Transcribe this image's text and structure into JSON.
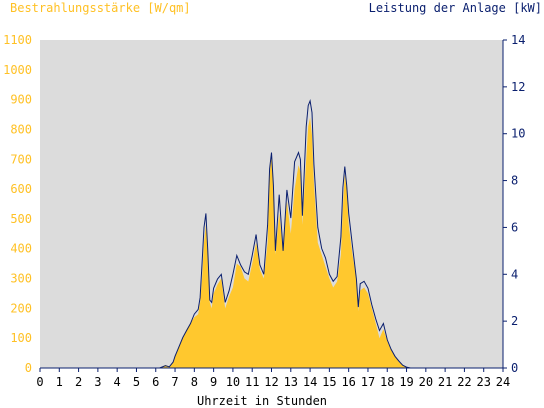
{
  "chart_data": {
    "type": "area",
    "ylabel_left": "Bestrahlungsstärke [W/qm]",
    "ylabel_right": "Leistung der Anlage [kW]",
    "xlabel": "Uhrzeit in Stunden",
    "xlim": [
      0,
      24
    ],
    "ylim_left": [
      0,
      1100
    ],
    "ylim_right": [
      0,
      14
    ],
    "x_ticks": [
      0,
      1,
      2,
      3,
      4,
      5,
      6,
      7,
      8,
      9,
      10,
      11,
      12,
      13,
      14,
      15,
      16,
      17,
      18,
      19,
      20,
      21,
      22,
      23,
      24
    ],
    "y_ticks_left": [
      0,
      100,
      200,
      300,
      400,
      500,
      600,
      700,
      800,
      900,
      1000,
      1100
    ],
    "y_ticks_right": [
      0,
      2,
      4,
      6,
      8,
      10,
      12,
      14
    ],
    "grid": false,
    "colors": {
      "plot_background": "#dcdcdc",
      "irradiance_fill": "#ffc82e",
      "power_line": "#0a1f6e",
      "left_axis_text": "#ffc125",
      "right_axis_text": "#0a1f6e"
    },
    "series": [
      {
        "axis": "left",
        "style": "filled-area",
        "x": [
          0,
          6.2,
          6.5,
          6.7,
          6.9,
          7.0,
          7.2,
          7.4,
          7.6,
          7.8,
          8.0,
          8.2,
          8.3,
          8.4,
          8.5,
          8.6,
          8.7,
          8.8,
          8.9,
          9.0,
          9.2,
          9.4,
          9.6,
          9.8,
          10.0,
          10.2,
          10.4,
          10.6,
          10.8,
          11.0,
          11.2,
          11.3,
          11.4,
          11.6,
          11.8,
          11.9,
          12.0,
          12.1,
          12.2,
          12.4,
          12.6,
          12.8,
          13.0,
          13.2,
          13.4,
          13.5,
          13.6,
          13.8,
          13.9,
          14.0,
          14.1,
          14.2,
          14.4,
          14.6,
          14.8,
          15.0,
          15.2,
          15.4,
          15.6,
          15.7,
          15.8,
          15.9,
          16.0,
          16.2,
          16.4,
          16.5,
          16.6,
          16.8,
          17.0,
          17.2,
          17.4,
          17.6,
          17.8,
          18.0,
          18.2,
          18.4,
          18.6,
          18.8,
          19.0,
          19.2,
          24
        ],
        "y": [
          0,
          0,
          10,
          5,
          20,
          40,
          70,
          100,
          130,
          150,
          170,
          180,
          220,
          300,
          420,
          480,
          380,
          220,
          200,
          250,
          280,
          300,
          200,
          240,
          270,
          350,
          340,
          300,
          290,
          350,
          420,
          380,
          330,
          300,
          420,
          650,
          710,
          620,
          380,
          520,
          390,
          560,
          450,
          600,
          680,
          660,
          480,
          700,
          810,
          840,
          780,
          620,
          420,
          380,
          340,
          300,
          270,
          290,
          380,
          540,
          650,
          600,
          480,
          380,
          300,
          190,
          260,
          270,
          250,
          200,
          150,
          100,
          130,
          90,
          60,
          40,
          20,
          10,
          3,
          0,
          0
        ]
      },
      {
        "axis": "right",
        "style": "line",
        "x": [
          0,
          6.2,
          6.5,
          6.7,
          6.9,
          7.0,
          7.2,
          7.4,
          7.6,
          7.8,
          8.0,
          8.2,
          8.3,
          8.4,
          8.5,
          8.6,
          8.7,
          8.8,
          8.9,
          9.0,
          9.2,
          9.4,
          9.6,
          9.8,
          10.0,
          10.2,
          10.4,
          10.6,
          10.8,
          11.0,
          11.2,
          11.3,
          11.4,
          11.6,
          11.8,
          11.9,
          12.0,
          12.1,
          12.2,
          12.4,
          12.6,
          12.8,
          13.0,
          13.2,
          13.4,
          13.5,
          13.6,
          13.8,
          13.9,
          14.0,
          14.1,
          14.2,
          14.4,
          14.6,
          14.8,
          15.0,
          15.2,
          15.4,
          15.6,
          15.7,
          15.8,
          15.9,
          16.0,
          16.2,
          16.4,
          16.5,
          16.6,
          16.8,
          17.0,
          17.2,
          17.4,
          17.6,
          17.8,
          18.0,
          18.2,
          18.4,
          18.6,
          18.8,
          19.0,
          19.2,
          24
        ],
        "y": [
          0,
          0,
          0.1,
          0.05,
          0.25,
          0.5,
          0.9,
          1.3,
          1.6,
          1.9,
          2.3,
          2.5,
          3.0,
          4.5,
          6.0,
          6.6,
          5.0,
          2.9,
          2.8,
          3.4,
          3.8,
          4.0,
          2.8,
          3.3,
          4.0,
          4.8,
          4.4,
          4.1,
          4.0,
          4.8,
          5.7,
          5.0,
          4.4,
          4.0,
          6.1,
          8.5,
          9.2,
          7.8,
          5.0,
          7.4,
          5.0,
          7.6,
          6.4,
          8.8,
          9.2,
          8.9,
          6.5,
          10.3,
          11.2,
          11.4,
          10.9,
          8.7,
          6.0,
          5.1,
          4.7,
          4.0,
          3.7,
          3.9,
          5.6,
          7.7,
          8.6,
          7.8,
          6.6,
          5.2,
          3.8,
          2.6,
          3.6,
          3.7,
          3.4,
          2.7,
          2.1,
          1.6,
          1.9,
          1.2,
          0.8,
          0.5,
          0.3,
          0.12,
          0.04,
          0,
          0
        ]
      }
    ]
  }
}
